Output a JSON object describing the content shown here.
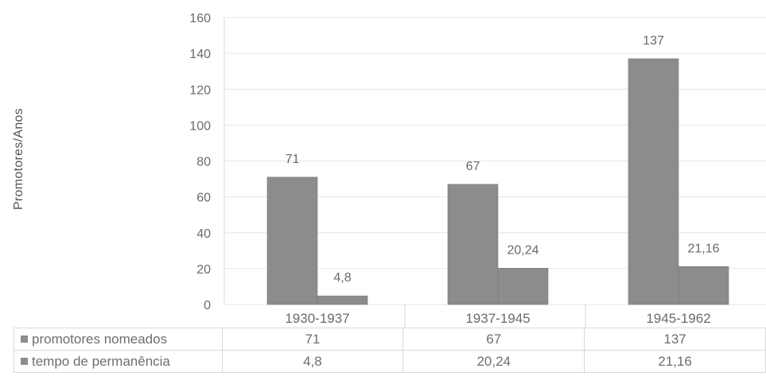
{
  "chart_data": {
    "type": "bar",
    "ylabel": "Promotores/Anos",
    "ylim": [
      0,
      160
    ],
    "yticks": [
      0,
      20,
      40,
      60,
      80,
      100,
      120,
      140,
      160
    ],
    "grid": true,
    "categories": [
      "1930-1937",
      "1937-1945",
      "1945-1962"
    ],
    "series": [
      {
        "name": "promotores nomeados",
        "values": [
          71,
          67,
          137
        ],
        "labels": [
          "71",
          "67",
          "137"
        ]
      },
      {
        "name": "tempo de permanência",
        "values": [
          4.8,
          20.24,
          21.16
        ],
        "labels": [
          "4,8",
          "20,24",
          "21,16"
        ]
      }
    ],
    "data_table": {
      "rows": [
        {
          "label": "promotores nomeados",
          "cells": [
            "71",
            "67",
            "137"
          ]
        },
        {
          "label": "tempo de permanência",
          "cells": [
            "4,8",
            "20,24",
            "21,16"
          ]
        }
      ]
    },
    "colors": {
      "bar": "#8c8c8c",
      "grid": "#e6e6e6",
      "text": "#6a6a6a"
    }
  }
}
